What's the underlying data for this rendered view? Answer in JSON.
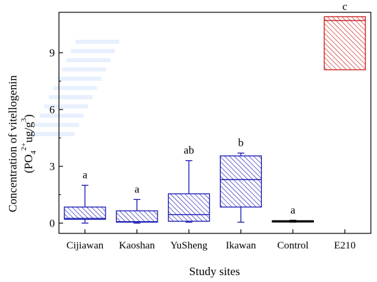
{
  "chart_data": {
    "type": "box",
    "xlabel": "Study sites",
    "ylabel": {
      "line1": "Concentration of vitellogenin",
      "line2_prefix": "(PO",
      "sub": "4",
      "sup1": "2+",
      "mid": "ug/g",
      "sup2": "3",
      "line2_suffix": ")"
    },
    "ylim": [
      -0.5,
      11.0
    ],
    "yticks": [
      0,
      3,
      6,
      9
    ],
    "ytick_labels": [
      "0",
      "3",
      "6",
      "9"
    ],
    "grid": false,
    "categories": [
      "Cijiawan",
      "Kaoshan",
      "YuSheng",
      "Ikawan",
      "Control",
      "E210"
    ],
    "boxes": [
      {
        "category": "Cijiawan",
        "whisker_low": 0.0,
        "q1": 0.2,
        "median": 0.25,
        "q3": 0.85,
        "whisker_high": 2.0,
        "letter": "a",
        "color": "#1a1ab4"
      },
      {
        "category": "Kaoshan",
        "whisker_low": 0.0,
        "q1": 0.05,
        "median": 0.08,
        "q3": 0.65,
        "whisker_high": 1.25,
        "letter": "a",
        "color": "#1a1ab4"
      },
      {
        "category": "YuSheng",
        "whisker_low": 0.05,
        "q1": 0.1,
        "median": 0.45,
        "q3": 1.55,
        "whisker_high": 3.3,
        "letter": "ab",
        "color": "#1a1ab4"
      },
      {
        "category": "Ikawan",
        "whisker_low": 0.05,
        "q1": 0.85,
        "median": 2.3,
        "q3": 3.55,
        "whisker_high": 3.7,
        "letter": "b",
        "color": "#1a1ab4"
      },
      {
        "category": "Control",
        "whisker_low": 0.05,
        "q1": 0.07,
        "median": 0.1,
        "q3": 0.13,
        "whisker_high": 0.15,
        "letter": "a",
        "color": "#000000"
      },
      {
        "category": "E210",
        "whisker_low": 8.1,
        "q1": 8.1,
        "median": 10.7,
        "q3": 10.9,
        "whisker_high": 10.9,
        "letter": "c",
        "color": "#c81e1e"
      }
    ]
  }
}
